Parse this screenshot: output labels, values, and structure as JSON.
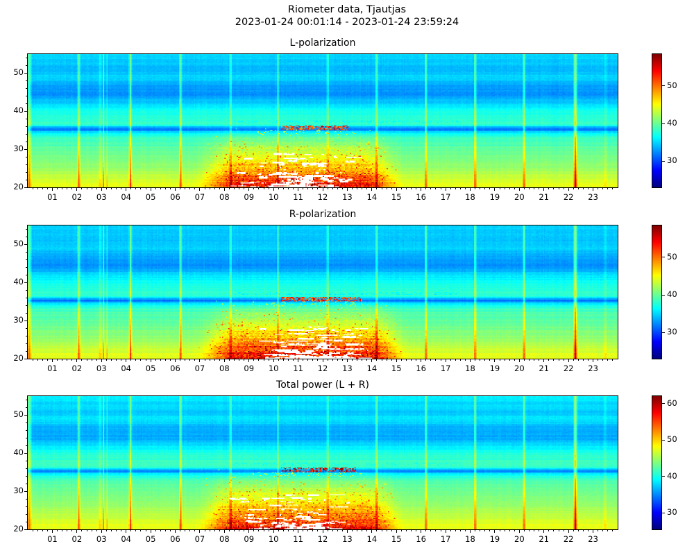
{
  "figure": {
    "title": "Riometer data, Tjautjas",
    "subtitle": "2023-01-24 00:01:14 - 2023-01-24 23:59:24"
  },
  "chart_data": [
    {
      "type": "heatmap",
      "title": "L-polarization",
      "x_axis": {
        "range_hours": [
          0,
          24
        ],
        "tick_hours": [
          1,
          2,
          3,
          4,
          5,
          6,
          7,
          8,
          9,
          10,
          11,
          12,
          13,
          14,
          15,
          16,
          17,
          18,
          19,
          20,
          21,
          22,
          23
        ],
        "tick_labels": [
          "01",
          "02",
          "03",
          "04",
          "05",
          "06",
          "07",
          "08",
          "09",
          "10",
          "11",
          "12",
          "13",
          "14",
          "15",
          "16",
          "17",
          "18",
          "19",
          "20",
          "21",
          "22",
          "23"
        ],
        "minor_step_hours": 0.2
      },
      "y_axis": {
        "range": [
          20,
          55
        ],
        "tick_values": [
          20,
          30,
          40,
          50
        ],
        "tick_labels": [
          "20",
          "30",
          "40",
          "50"
        ],
        "minor_step": 2
      },
      "colormap": "jet",
      "color_scale": {
        "vmin": 23,
        "vmax": 58.5,
        "tick_values": [
          30,
          40,
          50
        ],
        "tick_labels": [
          "30",
          "40",
          "50"
        ]
      },
      "value_offset": 0,
      "background_profile": [
        [
          20,
          44.6
        ],
        [
          21,
          44.2
        ],
        [
          23,
          43.0
        ],
        [
          25,
          41.8
        ],
        [
          27,
          40.8
        ],
        [
          30,
          39.6
        ],
        [
          33,
          38.5
        ],
        [
          34.5,
          35.5
        ],
        [
          35.2,
          31.0
        ],
        [
          35.8,
          34.0
        ],
        [
          36.5,
          38.0
        ],
        [
          38,
          37.8
        ],
        [
          40,
          36.8
        ],
        [
          42,
          35.0
        ],
        [
          44,
          32.6
        ],
        [
          47,
          33.2
        ],
        [
          49,
          35.2
        ],
        [
          51,
          33.8
        ],
        [
          53,
          34.6
        ],
        [
          55,
          35.0
        ]
      ],
      "hourly_stripes": [
        {
          "hour": 0.06,
          "width": 0.1,
          "amp": 7,
          "uniform": true
        },
        {
          "hour": 2.08,
          "width": 0.07,
          "amp": 7
        },
        {
          "hour": 2.95,
          "width": 0.05,
          "amp": 4
        },
        {
          "hour": 3.08,
          "width": 0.05,
          "amp": 5
        },
        {
          "hour": 3.22,
          "width": 0.04,
          "amp": 3.5
        },
        {
          "hour": 4.18,
          "width": 0.07,
          "amp": 7.5
        },
        {
          "hour": 6.22,
          "width": 0.07,
          "amp": 7.5
        },
        {
          "hour": 8.25,
          "width": 0.06,
          "amp": 6.5
        },
        {
          "hour": 10.18,
          "width": 0.05,
          "amp": 6
        },
        {
          "hour": 12.2,
          "width": 0.05,
          "amp": 6
        },
        {
          "hour": 14.2,
          "width": 0.07,
          "amp": 7.5
        },
        {
          "hour": 16.2,
          "width": 0.07,
          "amp": 8
        },
        {
          "hour": 18.2,
          "width": 0.07,
          "amp": 8
        },
        {
          "hour": 20.2,
          "width": 0.07,
          "amp": 8
        },
        {
          "hour": 22.28,
          "width": 0.1,
          "amp": 11
        },
        {
          "hour": 23.5,
          "width": 0.05,
          "amp": 3
        }
      ],
      "disturbance": {
        "h_start": 6.7,
        "h_rise": 8.6,
        "h_fall": 13.6,
        "h_end": 15.45,
        "top_y": 36.2,
        "amp": 7.2
      },
      "absorption_streak": {
        "y_low": 35.1,
        "y_high": 36.3,
        "h_start": 10.3,
        "h_end": 13.05,
        "density": 0.55
      },
      "white_patches": {
        "count": 130,
        "center_h": 11.0,
        "spread_h": 2.6,
        "y_min": 20.1,
        "y_span": 9.0
      },
      "seed": 7
    },
    {
      "type": "heatmap",
      "title": "R-polarization",
      "x_axis": {
        "range_hours": [
          0,
          24
        ],
        "tick_hours": [
          1,
          2,
          3,
          4,
          5,
          6,
          7,
          8,
          9,
          10,
          11,
          12,
          13,
          14,
          15,
          16,
          17,
          18,
          19,
          20,
          21,
          22,
          23
        ],
        "tick_labels": [
          "01",
          "02",
          "03",
          "04",
          "05",
          "06",
          "07",
          "08",
          "09",
          "10",
          "11",
          "12",
          "13",
          "14",
          "15",
          "16",
          "17",
          "18",
          "19",
          "20",
          "21",
          "22",
          "23"
        ],
        "minor_step_hours": 0.2
      },
      "y_axis": {
        "range": [
          20,
          55
        ],
        "tick_values": [
          20,
          30,
          40,
          50
        ],
        "tick_labels": [
          "20",
          "30",
          "40",
          "50"
        ],
        "minor_step": 2
      },
      "colormap": "jet",
      "color_scale": {
        "vmin": 23,
        "vmax": 58.5,
        "tick_values": [
          30,
          40,
          50
        ],
        "tick_labels": [
          "30",
          "40",
          "50"
        ]
      },
      "value_offset": 0,
      "background_profile": [
        [
          20,
          44.6
        ],
        [
          21,
          44.2
        ],
        [
          23,
          43.0
        ],
        [
          25,
          41.8
        ],
        [
          27,
          40.8
        ],
        [
          30,
          39.6
        ],
        [
          33,
          38.5
        ],
        [
          34.5,
          35.5
        ],
        [
          35.2,
          31.0
        ],
        [
          35.8,
          34.0
        ],
        [
          36.5,
          38.0
        ],
        [
          38,
          37.8
        ],
        [
          40,
          36.8
        ],
        [
          42,
          35.0
        ],
        [
          44,
          32.6
        ],
        [
          47,
          33.2
        ],
        [
          49,
          35.2
        ],
        [
          51,
          33.8
        ],
        [
          53,
          34.6
        ],
        [
          55,
          35.0
        ]
      ],
      "hourly_stripes": [
        {
          "hour": 0.06,
          "width": 0.1,
          "amp": 7,
          "uniform": true
        },
        {
          "hour": 2.08,
          "width": 0.07,
          "amp": 7
        },
        {
          "hour": 2.95,
          "width": 0.05,
          "amp": 4
        },
        {
          "hour": 3.08,
          "width": 0.05,
          "amp": 5
        },
        {
          "hour": 3.22,
          "width": 0.04,
          "amp": 3.5
        },
        {
          "hour": 4.18,
          "width": 0.07,
          "amp": 7.5
        },
        {
          "hour": 6.22,
          "width": 0.07,
          "amp": 7.5
        },
        {
          "hour": 8.25,
          "width": 0.06,
          "amp": 6.5
        },
        {
          "hour": 10.18,
          "width": 0.05,
          "amp": 6
        },
        {
          "hour": 12.2,
          "width": 0.05,
          "amp": 6
        },
        {
          "hour": 14.2,
          "width": 0.07,
          "amp": 7.5
        },
        {
          "hour": 16.2,
          "width": 0.07,
          "amp": 8
        },
        {
          "hour": 18.2,
          "width": 0.07,
          "amp": 8
        },
        {
          "hour": 20.2,
          "width": 0.07,
          "amp": 8
        },
        {
          "hour": 22.28,
          "width": 0.1,
          "amp": 11
        },
        {
          "hour": 23.5,
          "width": 0.05,
          "amp": 3
        }
      ],
      "disturbance": {
        "h_start": 6.7,
        "h_rise": 8.7,
        "h_fall": 13.9,
        "h_end": 15.6,
        "top_y": 36.2,
        "amp": 7.5
      },
      "absorption_streak": {
        "y_low": 35.1,
        "y_high": 36.3,
        "h_start": 10.3,
        "h_end": 13.6,
        "density": 0.55
      },
      "white_patches": {
        "count": 160,
        "center_h": 11.7,
        "spread_h": 2.4,
        "y_min": 20.1,
        "y_span": 8.5
      },
      "seed": 13
    },
    {
      "type": "heatmap",
      "title": "Total power (L + R)",
      "x_axis": {
        "range_hours": [
          0,
          24
        ],
        "tick_hours": [
          1,
          2,
          3,
          4,
          5,
          6,
          7,
          8,
          9,
          10,
          11,
          12,
          13,
          14,
          15,
          16,
          17,
          18,
          19,
          20,
          21,
          22,
          23
        ],
        "tick_labels": [
          "01",
          "02",
          "03",
          "04",
          "05",
          "06",
          "07",
          "08",
          "09",
          "10",
          "11",
          "12",
          "13",
          "14",
          "15",
          "16",
          "17",
          "18",
          "19",
          "20",
          "21",
          "22",
          "23"
        ],
        "minor_step_hours": 0.2
      },
      "y_axis": {
        "range": [
          20,
          55
        ],
        "tick_values": [
          20,
          30,
          40,
          50
        ],
        "tick_labels": [
          "20",
          "30",
          "40",
          "50"
        ],
        "minor_step": 2
      },
      "colormap": "jet",
      "color_scale": {
        "vmin": 25.5,
        "vmax": 62,
        "tick_values": [
          30,
          40,
          50,
          60
        ],
        "tick_labels": [
          "30",
          "40",
          "50",
          "60"
        ]
      },
      "value_offset": 3.4,
      "background_profile": [
        [
          20,
          44.6
        ],
        [
          21,
          44.2
        ],
        [
          23,
          43.0
        ],
        [
          25,
          41.8
        ],
        [
          27,
          40.8
        ],
        [
          30,
          39.6
        ],
        [
          33,
          38.5
        ],
        [
          34.5,
          35.5
        ],
        [
          35.2,
          31.0
        ],
        [
          35.8,
          34.0
        ],
        [
          36.5,
          38.0
        ],
        [
          38,
          37.8
        ],
        [
          40,
          36.8
        ],
        [
          42,
          35.0
        ],
        [
          44,
          32.6
        ],
        [
          47,
          33.2
        ],
        [
          49,
          35.2
        ],
        [
          51,
          33.8
        ],
        [
          53,
          34.6
        ],
        [
          55,
          35.0
        ]
      ],
      "hourly_stripes": [
        {
          "hour": 0.06,
          "width": 0.1,
          "amp": 7,
          "uniform": true
        },
        {
          "hour": 2.08,
          "width": 0.07,
          "amp": 7
        },
        {
          "hour": 2.95,
          "width": 0.05,
          "amp": 4
        },
        {
          "hour": 3.08,
          "width": 0.05,
          "amp": 5
        },
        {
          "hour": 3.22,
          "width": 0.04,
          "amp": 3.5
        },
        {
          "hour": 4.18,
          "width": 0.07,
          "amp": 7.5
        },
        {
          "hour": 6.22,
          "width": 0.07,
          "amp": 7.5
        },
        {
          "hour": 8.25,
          "width": 0.06,
          "amp": 6.5
        },
        {
          "hour": 10.18,
          "width": 0.05,
          "amp": 6
        },
        {
          "hour": 12.2,
          "width": 0.05,
          "amp": 6
        },
        {
          "hour": 14.2,
          "width": 0.07,
          "amp": 7.5
        },
        {
          "hour": 16.2,
          "width": 0.07,
          "amp": 8
        },
        {
          "hour": 18.2,
          "width": 0.07,
          "amp": 8
        },
        {
          "hour": 20.2,
          "width": 0.07,
          "amp": 8
        },
        {
          "hour": 22.28,
          "width": 0.1,
          "amp": 11
        },
        {
          "hour": 23.5,
          "width": 0.05,
          "amp": 3
        }
      ],
      "disturbance": {
        "h_start": 6.7,
        "h_rise": 8.6,
        "h_fall": 13.7,
        "h_end": 15.5,
        "top_y": 36.2,
        "amp": 7.0
      },
      "absorption_streak": {
        "y_low": 35.1,
        "y_high": 36.3,
        "h_start": 10.3,
        "h_end": 13.35,
        "density": 0.45
      },
      "white_patches": {
        "count": 120,
        "center_h": 10.9,
        "spread_h": 2.5,
        "y_min": 20.1,
        "y_span": 9.0
      },
      "seed": 21
    }
  ]
}
